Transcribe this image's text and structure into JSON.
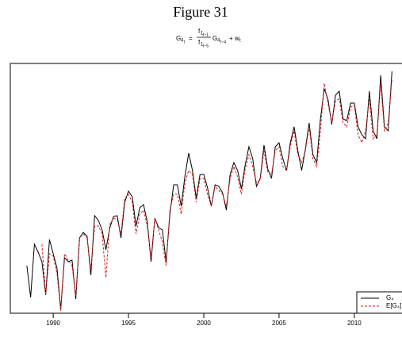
{
  "chart_data": {
    "type": "line",
    "title": "Figure 31",
    "equation": {
      "lhs": "G",
      "lhs_sub": "4",
      "lhs_subsub": "t",
      "eq": "=",
      "num": "f",
      "num_sub": "1",
      "num_subsub": "t−1",
      "den": "f",
      "den_sub": "1",
      "den_subsub": "t−5",
      "g": "G",
      "g_sub": "4",
      "g_subsub": "t−4",
      "plus": "+",
      "w": "w",
      "w_sub": "t"
    },
    "x": [
      1988.25,
      1988.5,
      1988.75,
      1989,
      1989.25,
      1989.5,
      1989.75,
      1990,
      1990.25,
      1990.5,
      1990.75,
      1991,
      1991.25,
      1991.5,
      1991.75,
      1992,
      1992.25,
      1992.5,
      1992.75,
      1993,
      1993.25,
      1993.5,
      1993.75,
      1994,
      1994.25,
      1994.5,
      1994.75,
      1995,
      1995.25,
      1995.5,
      1995.75,
      1996,
      1996.25,
      1996.5,
      1996.75,
      1997,
      1997.25,
      1997.5,
      1997.75,
      1998,
      1998.25,
      1998.5,
      1998.75,
      1999,
      1999.25,
      1999.5,
      1999.75,
      2000,
      2000.25,
      2000.5,
      2000.75,
      2001,
      2001.25,
      2001.5,
      2001.75,
      2002,
      2002.25,
      2002.5,
      2002.75,
      2003,
      2003.25,
      2003.5,
      2003.75,
      2004,
      2004.25,
      2004.5,
      2004.75,
      2005,
      2005.25,
      2005.5,
      2005.75,
      2006,
      2006.25,
      2006.5,
      2006.75,
      2007,
      2007.25,
      2007.5,
      2007.75,
      2008,
      2008.25,
      2008.5,
      2008.75,
      2009,
      2009.25,
      2009.5,
      2009.75,
      2010,
      2010.25,
      2010.5,
      2010.75,
      2011,
      2011.25,
      2011.5,
      2011.75,
      2012,
      2012.25,
      2012.5
    ],
    "series": [
      {
        "name": "G₄",
        "color": "#000000",
        "dash": false,
        "values": [
          60,
          20,
          87,
          77,
          65,
          23,
          93,
          75,
          57,
          5,
          70,
          65,
          67,
          18,
          95,
          102,
          97,
          48,
          123,
          117,
          105,
          80,
          107,
          122,
          123,
          95,
          140,
          154,
          147,
          110,
          133,
          137,
          115,
          65,
          120,
          108,
          105,
          65,
          125,
          162,
          162,
          135,
          173,
          202,
          180,
          145,
          175,
          175,
          158,
          135,
          162,
          160,
          152,
          130,
          175,
          190,
          180,
          157,
          187,
          210,
          195,
          160,
          170,
          212,
          182,
          170,
          210,
          215,
          195,
          180,
          215,
          235,
          205,
          180,
          207,
          240,
          200,
          190,
          245,
          283,
          270,
          238,
          275,
          280,
          245,
          243,
          265,
          265,
          235,
          225,
          220,
          280,
          230,
          220,
          300,
          235,
          230,
          305
        ]
      },
      {
        "name": "E[G₄]",
        "color": "#e41a1c",
        "dash": true,
        "values": [
          null,
          null,
          null,
          null,
          87,
          23,
          75,
          72,
          50,
          3,
          75,
          67,
          60,
          22,
          95,
          100,
          95,
          55,
          110,
          110,
          100,
          45,
          112,
          120,
          118,
          100,
          145,
          150,
          140,
          100,
          125,
          130,
          110,
          70,
          120,
          105,
          90,
          60,
          130,
          150,
          150,
          125,
          165,
          180,
          175,
          140,
          170,
          170,
          150,
          135,
          160,
          155,
          150,
          135,
          170,
          185,
          172,
          150,
          182,
          200,
          185,
          165,
          168,
          205,
          178,
          175,
          205,
          210,
          185,
          180,
          210,
          230,
          200,
          190,
          205,
          235,
          195,
          185,
          230,
          290,
          265,
          240,
          268,
          270,
          240,
          235,
          260,
          262,
          225,
          215,
          230,
          270,
          220,
          225,
          290,
          230,
          240,
          295
        ]
      }
    ],
    "xlim": [
      1987.15,
      2013.22
    ],
    "ylim": [
      0,
      315
    ],
    "xticks": [
      1990,
      1995,
      2000,
      2005,
      2010
    ],
    "legend": "bottom-right"
  }
}
